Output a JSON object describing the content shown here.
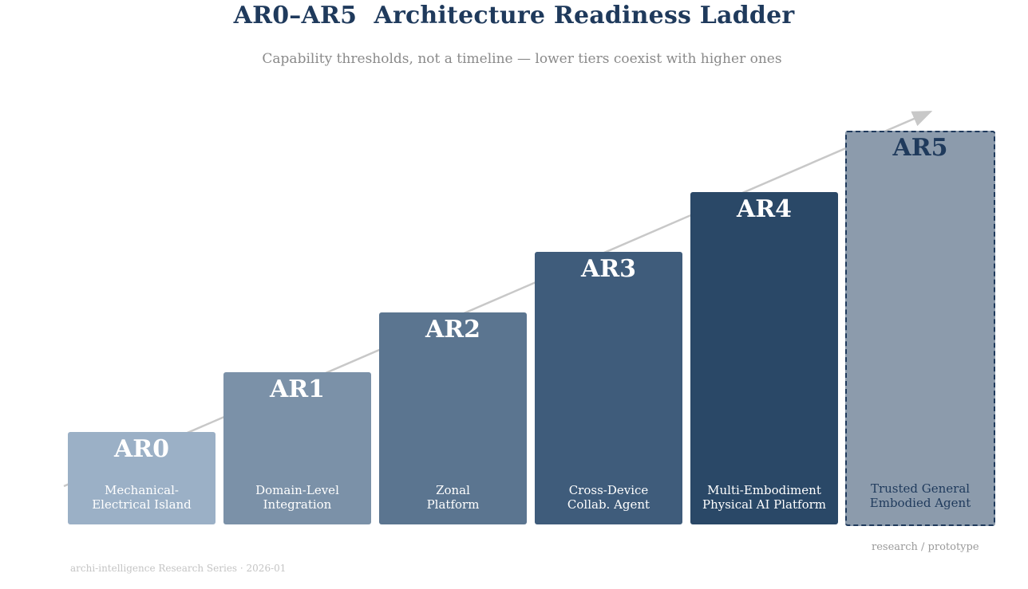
{
  "title": "AR0–AR5  Architecture Readiness Ladder",
  "subtitle": "Capability thresholds, not a timeline — lower tiers coexist with higher ones",
  "tiers": [
    {
      "label": "AR0",
      "desc_line1": "Mechanical-",
      "desc_line2": "Electrical Island",
      "color": "#9bb0c6"
    },
    {
      "label": "AR1",
      "desc_line1": "Domain-Level",
      "desc_line2": "Integration",
      "color": "#7b91a8"
    },
    {
      "label": "AR2",
      "desc_line1": "Zonal",
      "desc_line2": "Platform",
      "color": "#5b7590"
    },
    {
      "label": "AR3",
      "desc_line1": "Cross-Device",
      "desc_line2": "Collab. Agent",
      "color": "#3f5c7b"
    },
    {
      "label": "AR4",
      "desc_line1": "Multi-Embodiment",
      "desc_line2": "Physical AI Platform",
      "color": "#2a4867"
    },
    {
      "label": "AR5",
      "desc_line1": "Trusted General",
      "desc_line2": "Embodied Agent",
      "color": "#8c9bac",
      "style": "dashed"
    }
  ],
  "ar5_note": "research / prototype",
  "footer": "archi-intelligence Research Series · 2026-01",
  "colors": {
    "title": "#1f3a5c",
    "arrow": "#c8c8c8"
  }
}
